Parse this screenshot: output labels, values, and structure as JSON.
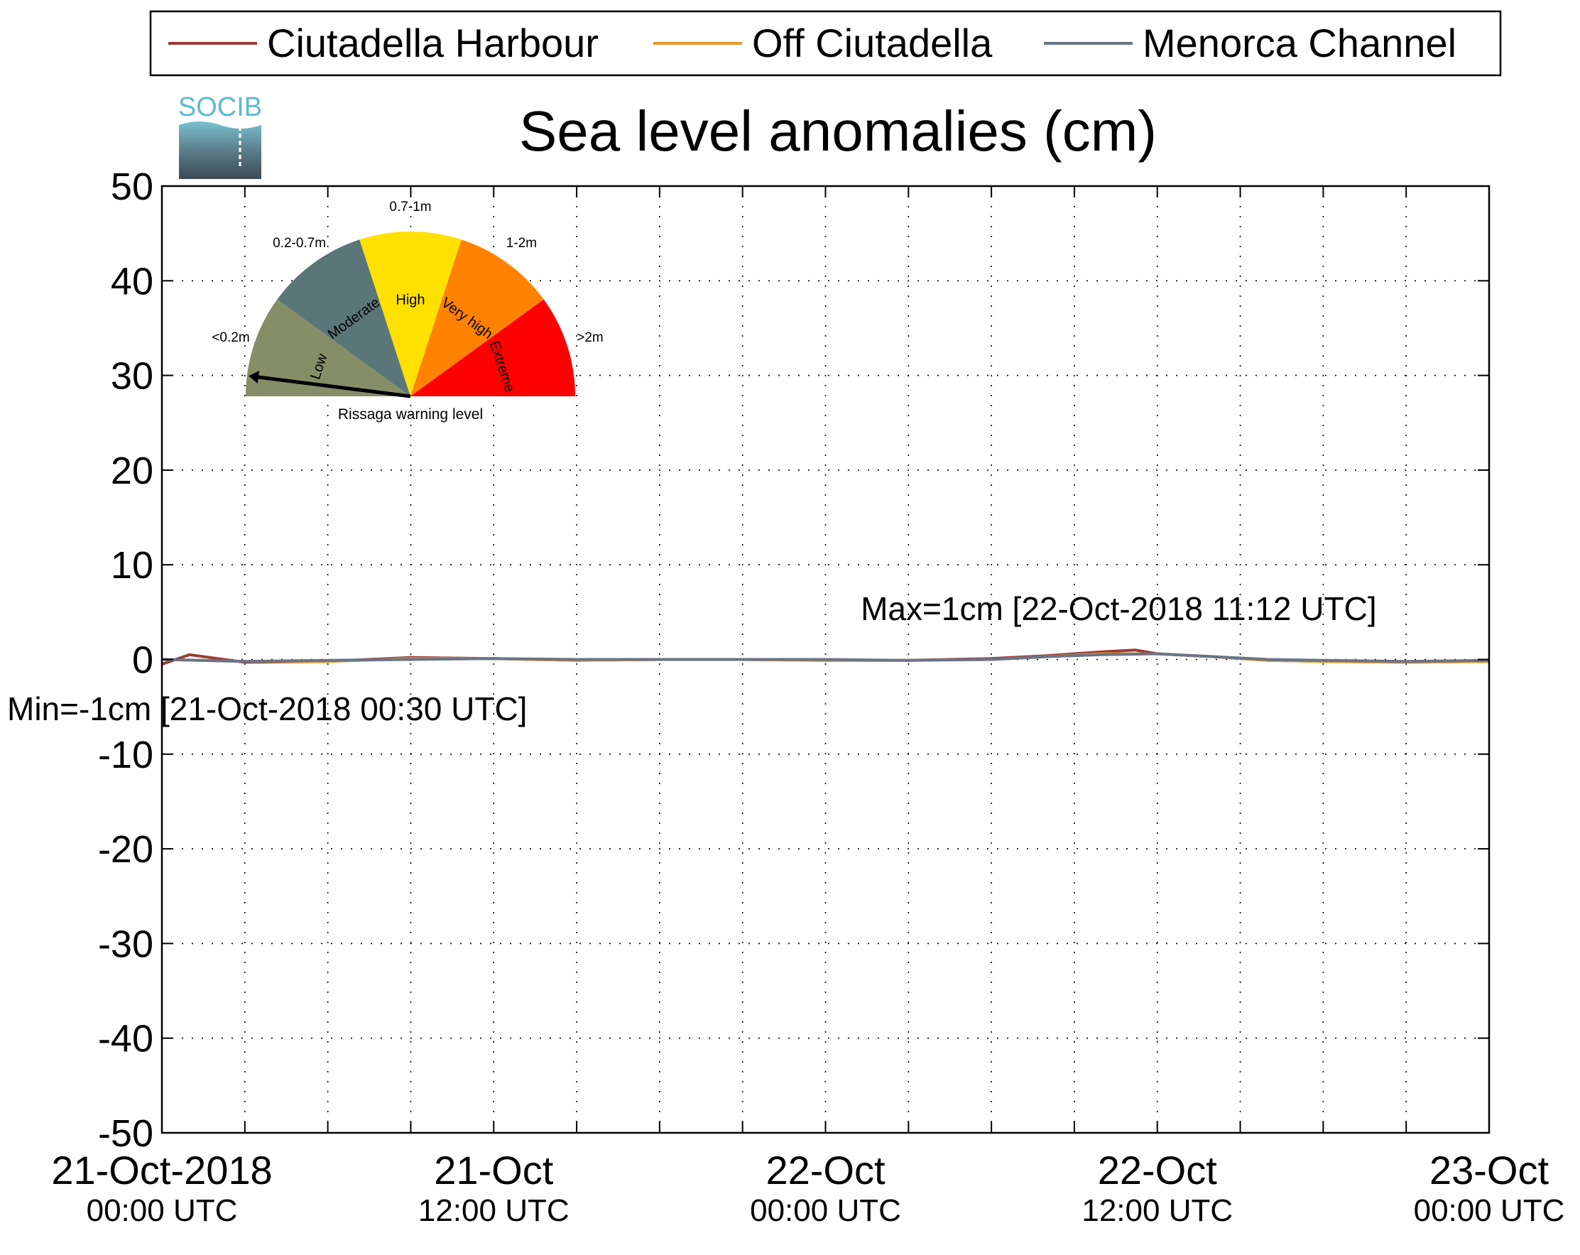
{
  "chart_data": {
    "type": "line",
    "title": "Sea level anomalies (cm)",
    "ylim": [
      -50,
      50
    ],
    "yticks": [
      -50,
      -40,
      -30,
      -20,
      -10,
      0,
      10,
      20,
      30,
      40,
      50
    ],
    "xlim": [
      "2018-10-21T00:00",
      "2018-10-23T00:00"
    ],
    "xtick_labels": [
      {
        "t": "2018-10-21T00:00",
        "line1": "21-Oct-2018",
        "line2": "00:00 UTC"
      },
      {
        "t": "2018-10-21T12:00",
        "line1": "21-Oct",
        "line2": "12:00 UTC"
      },
      {
        "t": "2018-10-22T00:00",
        "line1": "22-Oct",
        "line2": "00:00 UTC"
      },
      {
        "t": "2018-10-22T12:00",
        "line1": "22-Oct",
        "line2": "12:00 UTC"
      },
      {
        "t": "2018-10-23T00:00",
        "line1": "23-Oct",
        "line2": "00:00 UTC"
      }
    ],
    "grid": true,
    "legend_position": "top",
    "series": [
      {
        "name": "Ciutadella Harbour",
        "color": "#9b3b36",
        "x": [
          "2018-10-21T00:00",
          "2018-10-21T01:00",
          "2018-10-21T03:00",
          "2018-10-21T06:00",
          "2018-10-21T09:00",
          "2018-10-21T12:00",
          "2018-10-21T15:00",
          "2018-10-21T18:00",
          "2018-10-21T21:00",
          "2018-10-22T00:00",
          "2018-10-22T03:00",
          "2018-10-22T06:00",
          "2018-10-22T08:00",
          "2018-10-22T10:00",
          "2018-10-22T11:12",
          "2018-10-22T12:00",
          "2018-10-22T14:00",
          "2018-10-22T16:00",
          "2018-10-22T18:00",
          "2018-10-22T21:00",
          "2018-10-23T00:00"
        ],
        "y": [
          -0.5,
          0.5,
          -0.3,
          -0.2,
          0.2,
          0.1,
          -0.1,
          0,
          0,
          -0.1,
          -0.1,
          0.1,
          0.4,
          0.8,
          1,
          0.6,
          0.3,
          -0.1,
          -0.2,
          -0.3,
          -0.2
        ]
      },
      {
        "name": "Off Ciutadella",
        "color": "#e8952a",
        "x": [
          "2018-10-21T00:00",
          "2018-10-21T03:00",
          "2018-10-21T06:00",
          "2018-10-21T09:00",
          "2018-10-21T12:00",
          "2018-10-21T15:00",
          "2018-10-21T18:00",
          "2018-10-21T21:00",
          "2018-10-22T00:00",
          "2018-10-22T03:00",
          "2018-10-22T06:00",
          "2018-10-22T08:00",
          "2018-10-22T10:00",
          "2018-10-22T12:00",
          "2018-10-22T14:00",
          "2018-10-22T16:00",
          "2018-10-22T18:00",
          "2018-10-22T21:00",
          "2018-10-23T00:00"
        ],
        "y": [
          0,
          -0.2,
          -0.2,
          0.1,
          0.1,
          -0.1,
          0,
          0,
          -0.1,
          -0.1,
          0,
          0.3,
          0.6,
          0.6,
          0.3,
          -0.1,
          -0.2,
          -0.3,
          -0.2
        ]
      },
      {
        "name": "Menorca Channel",
        "color": "#6a7486",
        "x": [
          "2018-10-21T00:00",
          "2018-10-21T03:00",
          "2018-10-21T06:00",
          "2018-10-21T09:00",
          "2018-10-21T12:00",
          "2018-10-21T15:00",
          "2018-10-21T18:00",
          "2018-10-21T21:00",
          "2018-10-22T00:00",
          "2018-10-22T03:00",
          "2018-10-22T06:00",
          "2018-10-22T08:00",
          "2018-10-22T10:00",
          "2018-10-22T12:00",
          "2018-10-22T14:00",
          "2018-10-22T16:00",
          "2018-10-22T18:00",
          "2018-10-22T21:00",
          "2018-10-23T00:00"
        ],
        "y": [
          0,
          -0.2,
          -0.1,
          0,
          0.1,
          0,
          0,
          0,
          0,
          -0.1,
          0,
          0.3,
          0.5,
          0.6,
          0.3,
          0,
          -0.1,
          -0.2,
          -0.1
        ]
      }
    ],
    "annotations": {
      "max": {
        "text": "Max=1cm [22-Oct-2018 11:12 UTC]",
        "t": "2018-10-22T11:12",
        "value": 1
      },
      "min": {
        "text": "Min=-1cm [21-Oct-2018 00:30 UTC]",
        "t": "2018-10-21T00:30",
        "value": -1
      },
      "color": "#9b3b36"
    }
  },
  "logo": {
    "text": "SOCIB"
  },
  "gauge": {
    "caption": "Rissaga warning level",
    "current_level": "Low",
    "segments": [
      {
        "name": "Low",
        "range": "<0.2m",
        "color": "#858e66"
      },
      {
        "name": "Moderate",
        "range": "0.2-0.7m",
        "color": "#5a7678"
      },
      {
        "name": "High",
        "range": "0.7-1m",
        "color": "#ffe000"
      },
      {
        "name": "Very high",
        "range": "1-2m",
        "color": "#ff8200"
      },
      {
        "name": "Extreme",
        "range": ">2m",
        "color": "#ff0000"
      }
    ]
  }
}
